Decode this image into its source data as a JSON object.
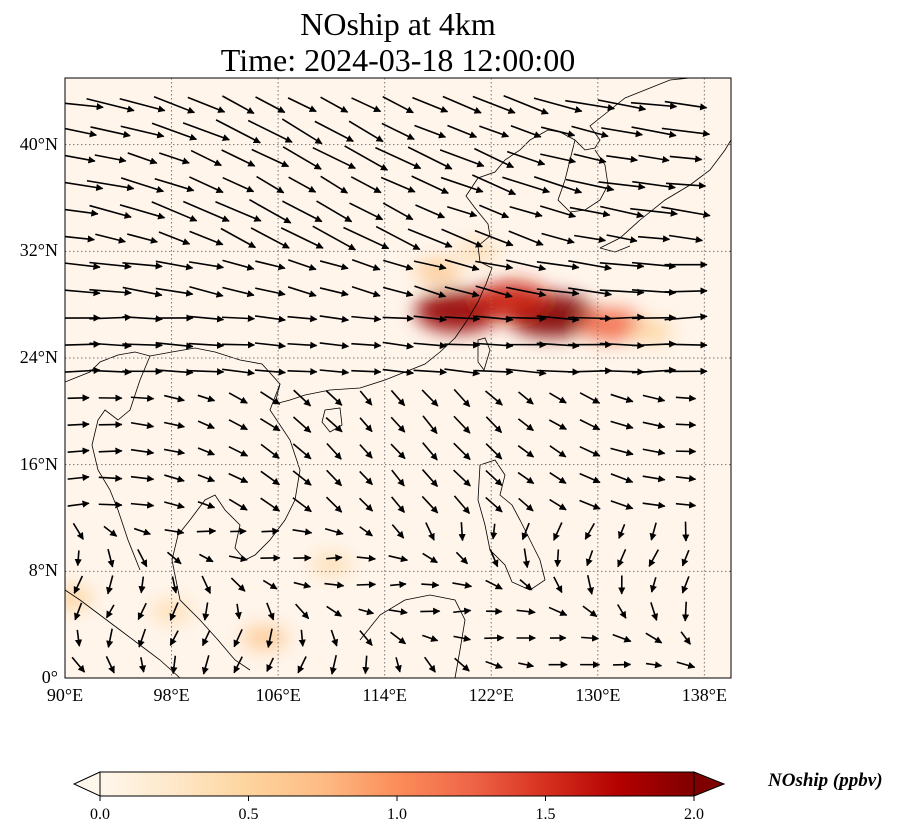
{
  "title": {
    "line1": "NOship at 4km",
    "line2": "Time: 2024-03-18 12:00:00"
  },
  "map": {
    "extent": {
      "lon": [
        90,
        140
      ],
      "lat": [
        0,
        45
      ]
    },
    "lat_ticks": [
      {
        "value": 0,
        "label": "0°"
      },
      {
        "value": 8,
        "label": "8°N"
      },
      {
        "value": 16,
        "label": "16°N"
      },
      {
        "value": 24,
        "label": "24°N"
      },
      {
        "value": 32,
        "label": "32°N"
      },
      {
        "value": 40,
        "label": "40°N"
      }
    ],
    "lon_ticks": [
      {
        "value": 90,
        "label": "90°E"
      },
      {
        "value": 98,
        "label": "98°E"
      },
      {
        "value": 106,
        "label": "106°E"
      },
      {
        "value": 114,
        "label": "114°E"
      },
      {
        "value": 122,
        "label": "122°E"
      },
      {
        "value": 130,
        "label": "130°E"
      },
      {
        "value": 138,
        "label": "138°E"
      }
    ],
    "gridlines": "dotted",
    "background_color": "#fff5eb"
  },
  "colorbar": {
    "label": "NOship (ppbv)",
    "ticks": [
      "0.0",
      "0.5",
      "1.0",
      "1.5",
      "2.0"
    ],
    "range": [
      0,
      2
    ],
    "extend": "both",
    "colormap": "OrRd",
    "colors": [
      "#fff7ec",
      "#fee8c8",
      "#fdd49e",
      "#fdbb84",
      "#fc8d59",
      "#ef6548",
      "#d7301f",
      "#b30000",
      "#7f0000"
    ]
  },
  "plumes": [
    {
      "lon": 119.5,
      "lat": 27.5,
      "value": 1.9
    },
    {
      "lon": 126.5,
      "lat": 27.2,
      "value": 2.0
    },
    {
      "lon": 123.5,
      "lat": 28.3,
      "value": 1.6
    },
    {
      "lon": 131,
      "lat": 26.5,
      "value": 1.2
    },
    {
      "lon": 118,
      "lat": 30.5,
      "value": 0.6
    },
    {
      "lon": 134,
      "lat": 26,
      "value": 0.5
    },
    {
      "lon": 121,
      "lat": 32,
      "value": 0.4
    },
    {
      "lon": 90.5,
      "lat": 6,
      "value": 0.5
    },
    {
      "lon": 105,
      "lat": 3,
      "value": 0.6
    },
    {
      "lon": 110,
      "lat": 8.5,
      "value": 0.4
    },
    {
      "lon": 98,
      "lat": 5,
      "value": 0.4
    }
  ]
}
